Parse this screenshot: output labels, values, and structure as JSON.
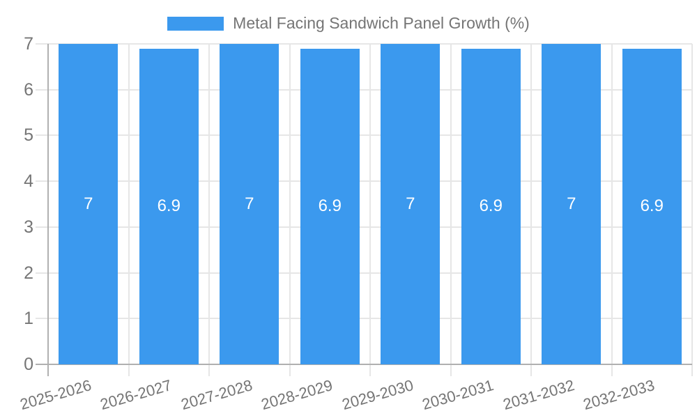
{
  "chart_data": {
    "type": "bar",
    "title": "Metal Facing Sandwich Panel Growth (%)",
    "categories": [
      "2025-2026",
      "2026-2027",
      "2027-2028",
      "2028-2029",
      "2029-2030",
      "2030-2031",
      "2031-2032",
      "2032-2033"
    ],
    "values": [
      7,
      6.9,
      7,
      6.9,
      7,
      6.9,
      7,
      6.9
    ],
    "bar_labels": [
      "7",
      "6.9",
      "7",
      "6.9",
      "7",
      "6.9",
      "7",
      "6.9"
    ],
    "xlabel": "",
    "ylabel": "",
    "ylim": [
      0,
      7
    ],
    "yticks": [
      0,
      1,
      2,
      3,
      4,
      5,
      6,
      7
    ],
    "ytick_labels": [
      "0",
      "1",
      "2",
      "3",
      "4",
      "5",
      "6",
      "7"
    ],
    "grid": true,
    "legend_position": "top",
    "colors": {
      "bar": "#3B99EE",
      "axis_text": "#757575",
      "gridline": "#e6e6e6",
      "axis_line": "#b0b0b0",
      "bar_label_text": "#ffffff",
      "background": "#ffffff"
    }
  }
}
